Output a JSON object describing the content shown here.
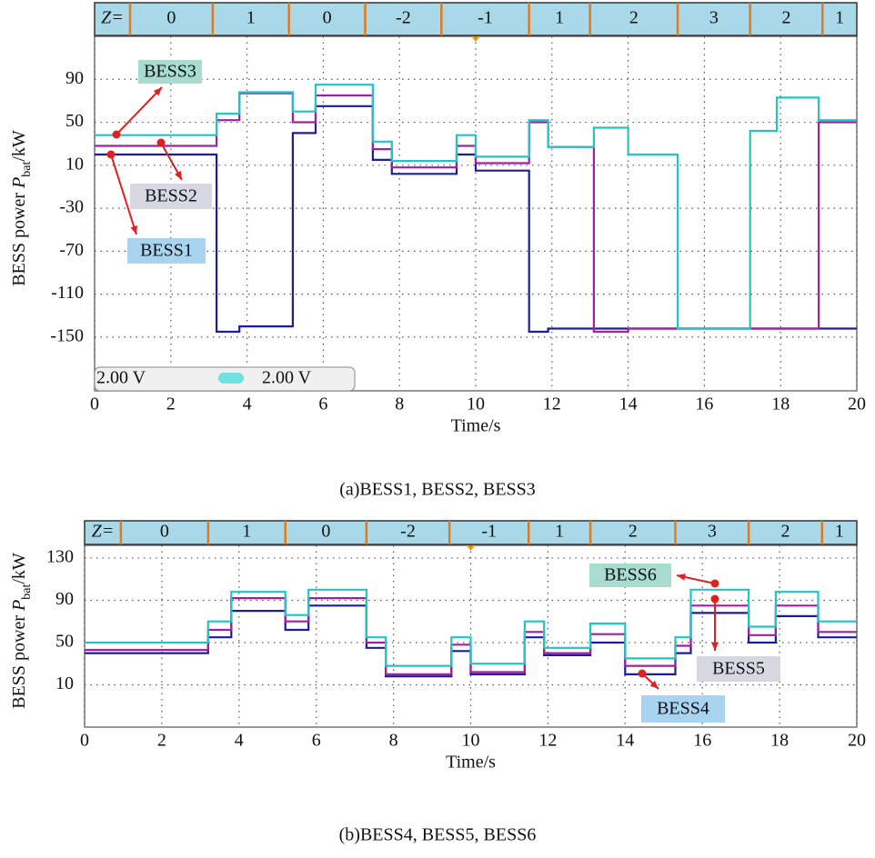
{
  "chart_data": [
    {
      "type": "line",
      "title": "(a)BESS1, BESS2, BESS3",
      "ylabel": [
        "BESS power ",
        "P",
        "bat",
        "/kW"
      ],
      "xlabel": "Time/s",
      "z_label": "Z=",
      "z_values": [
        0,
        1,
        0,
        -2,
        -1,
        1,
        2,
        3,
        2,
        1
      ],
      "z_edges": [
        0.93,
        3.1,
        5.1,
        7.1,
        9.1,
        11.4,
        13.0,
        15.3,
        17.2,
        19.1,
        20
      ],
      "channel_labels": [
        "2.00 V",
        "2.00 V"
      ],
      "xlim": [
        0,
        20
      ],
      "xticks": [
        0,
        2,
        4,
        6,
        8,
        10,
        12,
        14,
        16,
        18,
        20
      ],
      "ylim": [
        -200,
        130
      ],
      "yticks": [
        90,
        50,
        10,
        -30,
        -70,
        -110,
        -150
      ],
      "grid": true,
      "x": [
        0,
        3.2,
        3.2,
        3.8,
        3.8,
        5.2,
        5.2,
        5.8,
        5.8,
        7.3,
        7.3,
        7.8,
        7.8,
        9.5,
        9.5,
        10,
        10,
        11.4,
        11.4,
        11.9,
        11.9,
        13.1,
        13.1,
        14,
        14,
        15.3,
        15.3,
        17.2,
        17.2,
        17.9,
        17.9,
        19,
        19,
        20
      ],
      "series": [
        {
          "name": "BESS1",
          "color": "#1c1c9c",
          "label_color": "#a8d4f0",
          "values": [
            20,
            20,
            -145,
            -145,
            -140,
            -140,
            40,
            40,
            65,
            65,
            15,
            15,
            2,
            2,
            20,
            20,
            5,
            5,
            -145,
            -145,
            -142,
            -142,
            -142,
            -142,
            -142,
            -142,
            -142,
            -142,
            -142,
            -142,
            -142,
            -142,
            -142,
            -142
          ]
        },
        {
          "name": "BESS2",
          "color": "#a020a0",
          "label_color": "#d8d8e2",
          "values": [
            28,
            28,
            52,
            52,
            77,
            77,
            50,
            50,
            75,
            75,
            25,
            25,
            8,
            8,
            28,
            28,
            12,
            12,
            50,
            50,
            27,
            27,
            -145,
            -145,
            -142,
            -142,
            -142,
            -142,
            -142,
            -142,
            -142,
            -142,
            50,
            50
          ]
        },
        {
          "name": "BESS3",
          "color": "#22c4c4",
          "label_color": "#a8dcd0",
          "values": [
            38,
            38,
            58,
            58,
            78,
            78,
            60,
            60,
            85,
            85,
            32,
            32,
            14,
            14,
            38,
            38,
            18,
            18,
            52,
            52,
            27,
            27,
            45,
            45,
            20,
            20,
            -142,
            -142,
            42,
            42,
            73,
            73,
            52,
            52
          ]
        }
      ]
    },
    {
      "type": "line",
      "title": "(b)BESS4, BESS5, BESS6",
      "ylabel": [
        "BESS power ",
        "P",
        "bat",
        "/kW"
      ],
      "xlabel": "Time/s",
      "z_label": "Z=",
      "z_values": [
        0,
        1,
        0,
        -2,
        -1,
        1,
        2,
        3,
        2,
        1
      ],
      "z_edges": [
        0.94,
        3.2,
        5.2,
        7.3,
        9.45,
        11.5,
        13.1,
        15.3,
        17.2,
        19.1,
        20
      ],
      "xlim": [
        0,
        20
      ],
      "xticks": [
        0,
        2,
        4,
        6,
        8,
        10,
        12,
        14,
        16,
        18,
        20
      ],
      "ylim": [
        -30,
        142
      ],
      "yticks": [
        130,
        90,
        50,
        10
      ],
      "grid": true,
      "x": [
        0,
        3.2,
        3.2,
        3.8,
        3.8,
        5.2,
        5.2,
        5.8,
        5.8,
        7.3,
        7.3,
        7.8,
        7.8,
        9.5,
        9.5,
        10,
        10,
        11.4,
        11.4,
        11.9,
        11.9,
        13.1,
        13.1,
        14,
        14,
        15.3,
        15.3,
        15.7,
        15.7,
        17.2,
        17.2,
        17.9,
        17.9,
        19,
        19,
        20
      ],
      "series": [
        {
          "name": "BESS4",
          "color": "#1c1c9c",
          "label_color": "#a8d4f0",
          "values": [
            40,
            40,
            55,
            55,
            80,
            80,
            62,
            62,
            85,
            85,
            45,
            45,
            18,
            18,
            42,
            42,
            20,
            20,
            55,
            55,
            38,
            38,
            50,
            50,
            20,
            20,
            40,
            40,
            78,
            78,
            50,
            50,
            75,
            75,
            55,
            55
          ]
        },
        {
          "name": "BESS5",
          "color": "#a020a0",
          "label_color": "#d8d8e2",
          "values": [
            43,
            43,
            62,
            62,
            92,
            92,
            70,
            70,
            92,
            92,
            50,
            50,
            20,
            20,
            48,
            48,
            22,
            22,
            60,
            60,
            40,
            40,
            58,
            58,
            28,
            28,
            47,
            47,
            85,
            85,
            57,
            57,
            85,
            85,
            60,
            60
          ]
        },
        {
          "name": "BESS6",
          "color": "#22c4c4",
          "label_color": "#a8dcd0",
          "values": [
            50,
            50,
            70,
            70,
            98,
            98,
            76,
            76,
            100,
            100,
            55,
            55,
            28,
            28,
            55,
            55,
            30,
            30,
            70,
            70,
            45,
            45,
            68,
            68,
            35,
            35,
            55,
            55,
            100,
            100,
            65,
            65,
            98,
            98,
            70,
            70
          ]
        }
      ]
    }
  ]
}
